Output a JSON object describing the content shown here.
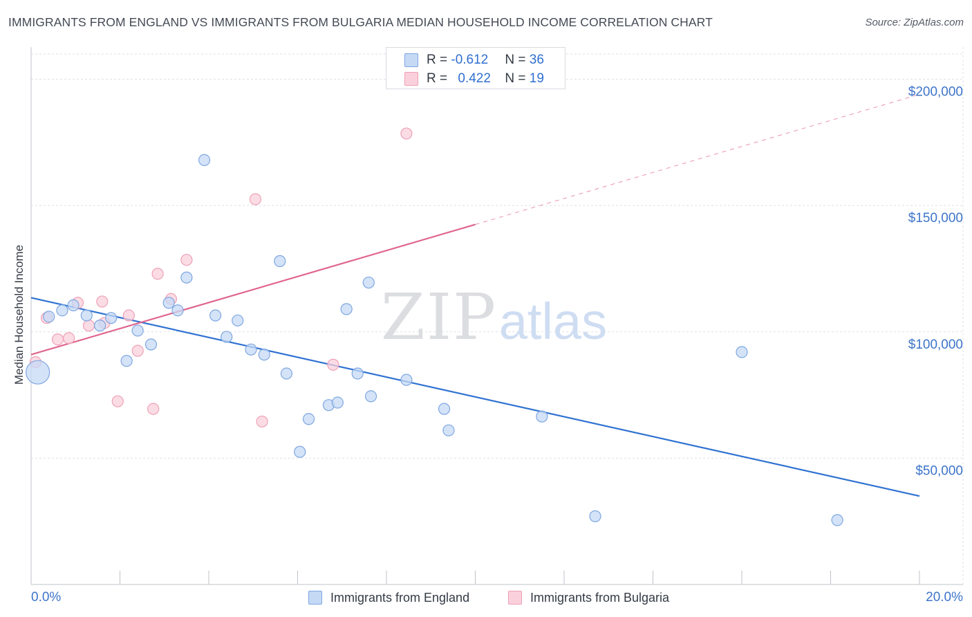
{
  "header": {
    "title": "IMMIGRANTS FROM ENGLAND VS IMMIGRANTS FROM BULGARIA MEDIAN HOUSEHOLD INCOME CORRELATION CHART",
    "source": "Source: ZipAtlas.com"
  },
  "stats_legend": {
    "r_prefix": "R = ",
    "n_prefix": "N = ",
    "rows": [
      {
        "r": "-0.612",
        "n": "36",
        "color": "#a9c7f0"
      },
      {
        "r": "0.422",
        "n": "19",
        "color": "#f6b8c9"
      }
    ]
  },
  "watermark": {
    "zip": "ZIP",
    "atlas": "atlas"
  },
  "colors": {
    "england_fill": "#c5d9f5",
    "england_stroke": "#7ea6e0",
    "england_line": "#2f72d2",
    "bulgaria_fill": "#fad0dc",
    "bulgaria_stroke": "#eea0b6",
    "bulgaria_line": "#e0658d",
    "axis_text": "#3d74c9",
    "grid": "#dde0e5"
  },
  "chart_data": {
    "type": "scatter",
    "title": "IMMIGRANTS FROM ENGLAND VS IMMIGRANTS FROM BULGARIA MEDIAN HOUSEHOLD INCOME CORRELATION CHART",
    "xlabel": "",
    "ylabel": "Median Household Income",
    "xlim": [
      0,
      20
    ],
    "ylim": [
      0,
      210000
    ],
    "x_tick_labels": [
      "0.0%",
      "20.0%"
    ],
    "y_ticks": [
      50000,
      100000,
      150000,
      200000
    ],
    "y_tick_labels": [
      "$50,000",
      "$100,000",
      "$150,000",
      "$200,000"
    ],
    "grid": true,
    "legend_position": "bottom",
    "series": [
      {
        "name": "Immigrants from England",
        "r": -0.612,
        "n": 36,
        "trend": {
          "x": [
            0,
            20
          ],
          "y": [
            113500,
            35000
          ],
          "style": "solid"
        },
        "points": [
          {
            "x": 0.15,
            "y": 84000,
            "size": "large"
          },
          {
            "x": 0.4,
            "y": 106000
          },
          {
            "x": 0.7,
            "y": 108500
          },
          {
            "x": 0.95,
            "y": 110500
          },
          {
            "x": 1.25,
            "y": 106500
          },
          {
            "x": 1.55,
            "y": 102500
          },
          {
            "x": 1.8,
            "y": 105500
          },
          {
            "x": 2.15,
            "y": 88500
          },
          {
            "x": 2.4,
            "y": 100500
          },
          {
            "x": 2.7,
            "y": 95000
          },
          {
            "x": 3.1,
            "y": 111500
          },
          {
            "x": 3.3,
            "y": 108500
          },
          {
            "x": 3.5,
            "y": 121500
          },
          {
            "x": 3.9,
            "y": 168000
          },
          {
            "x": 4.15,
            "y": 106500
          },
          {
            "x": 4.4,
            "y": 98000
          },
          {
            "x": 4.65,
            "y": 104500
          },
          {
            "x": 4.95,
            "y": 93000
          },
          {
            "x": 5.25,
            "y": 91000
          },
          {
            "x": 5.6,
            "y": 128000
          },
          {
            "x": 5.75,
            "y": 83500
          },
          {
            "x": 6.05,
            "y": 52500
          },
          {
            "x": 6.25,
            "y": 65500
          },
          {
            "x": 6.7,
            "y": 71000
          },
          {
            "x": 6.9,
            "y": 72000
          },
          {
            "x": 7.1,
            "y": 109000
          },
          {
            "x": 7.35,
            "y": 83500
          },
          {
            "x": 7.6,
            "y": 119500
          },
          {
            "x": 7.65,
            "y": 74500
          },
          {
            "x": 8.45,
            "y": 81000
          },
          {
            "x": 9.3,
            "y": 69500
          },
          {
            "x": 9.4,
            "y": 61000
          },
          {
            "x": 11.5,
            "y": 66500
          },
          {
            "x": 12.7,
            "y": 27000
          },
          {
            "x": 16.0,
            "y": 92000
          },
          {
            "x": 18.15,
            "y": 25500
          }
        ]
      },
      {
        "name": "Immigrants from Bulgaria",
        "r": 0.422,
        "n": 19,
        "trend": {
          "x": [
            0,
            10
          ],
          "y": [
            91000,
            142500
          ],
          "style": "solid",
          "extended": {
            "x": [
              10,
              20
            ],
            "y": [
              142500,
              194000
            ],
            "style": "dashed"
          }
        },
        "points": [
          {
            "x": 0.1,
            "y": 88000
          },
          {
            "x": 0.35,
            "y": 105500
          },
          {
            "x": 0.6,
            "y": 97000
          },
          {
            "x": 0.85,
            "y": 97500
          },
          {
            "x": 1.05,
            "y": 111500
          },
          {
            "x": 1.3,
            "y": 102500
          },
          {
            "x": 1.6,
            "y": 112000
          },
          {
            "x": 1.65,
            "y": 103500
          },
          {
            "x": 1.95,
            "y": 72500
          },
          {
            "x": 2.2,
            "y": 106500
          },
          {
            "x": 2.4,
            "y": 92500
          },
          {
            "x": 2.75,
            "y": 69500
          },
          {
            "x": 2.85,
            "y": 123000
          },
          {
            "x": 3.15,
            "y": 113000
          },
          {
            "x": 3.5,
            "y": 128500
          },
          {
            "x": 5.05,
            "y": 152500
          },
          {
            "x": 5.2,
            "y": 64500
          },
          {
            "x": 6.8,
            "y": 87000
          },
          {
            "x": 8.45,
            "y": 178500
          }
        ]
      }
    ]
  }
}
